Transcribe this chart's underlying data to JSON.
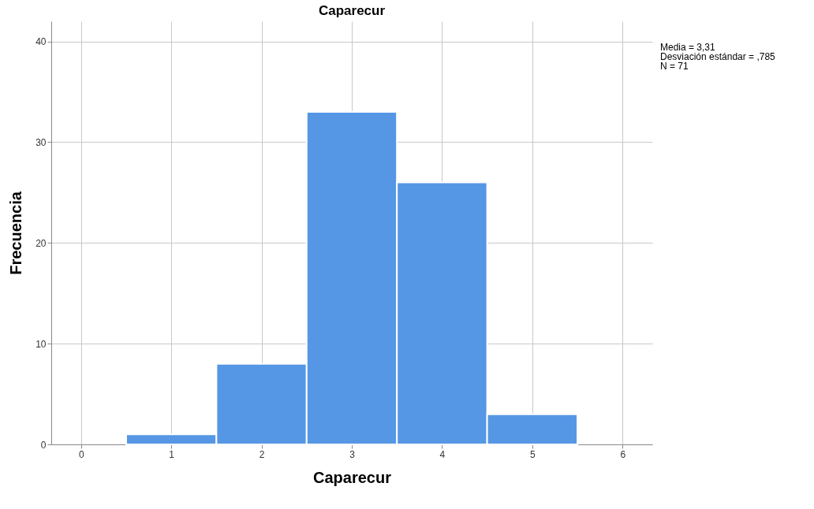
{
  "chart_data": {
    "type": "histogram",
    "title": "Caparecur",
    "xlabel": "Caparecur",
    "ylabel": "Frecuencia",
    "bins": [
      0.5,
      1.5,
      2.5,
      3.5,
      4.5,
      5.5
    ],
    "values": [
      1,
      8,
      33,
      26,
      3
    ],
    "color": "#5597e5",
    "xlim": [
      -0.33,
      6.33
    ],
    "xticks": [
      0,
      1,
      2,
      3,
      4,
      5,
      6
    ],
    "ylim": [
      0,
      42
    ],
    "yticks": [
      0,
      10,
      20,
      30,
      40
    ],
    "grid": true,
    "annotations": [
      "Media = 3,31",
      "Desviación estándar = ,785",
      "N = 71"
    ]
  }
}
